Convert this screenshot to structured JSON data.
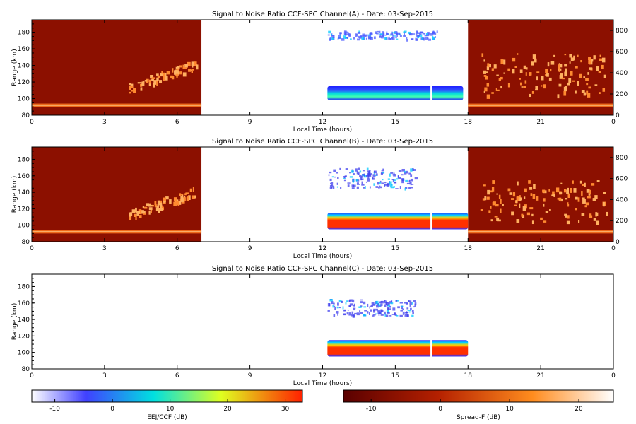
{
  "chart_data": [
    {
      "type": "heatmap",
      "title": "Signal to Noise Ratio CCF-SPC Channel(A) - Date: 03-Sep-2015",
      "xlabel": "Local Time (hours)",
      "ylabel": "Range (km)",
      "xlim": [
        0,
        24
      ],
      "xticks": [
        "0",
        "3",
        "6",
        "9",
        "12",
        "15",
        "18",
        "21",
        "0"
      ],
      "ylim": [
        80,
        195
      ],
      "yticks": [
        "80",
        "100",
        "120",
        "140",
        "160",
        "180"
      ],
      "y2lim": [
        0,
        900
      ],
      "y2ticks": [
        "0",
        "200",
        "400",
        "600",
        "800"
      ],
      "regions": [
        {
          "name": "night-spread-F",
          "x": [
            0,
            7
          ],
          "scale": "Spread-F"
        },
        {
          "name": "day-EEJ-CCF",
          "x": [
            12,
            18
          ],
          "scale": "EEJ/CCF"
        },
        {
          "name": "night-spread-F",
          "x": [
            18,
            24
          ],
          "scale": "Spread-F"
        }
      ],
      "echoes": [
        {
          "feature": "EEJ band",
          "x": [
            12.2,
            17.8
          ],
          "range_km": [
            98,
            115
          ],
          "snr_db": 15
        },
        {
          "feature": "150 km echoes",
          "x": [
            12.2,
            16.7
          ],
          "range_km": [
            172,
            182
          ],
          "snr_db": -5
        }
      ]
    },
    {
      "type": "heatmap",
      "title": "Signal to Noise Ratio CCF-SPC Channel(B) - Date: 03-Sep-2015",
      "xlabel": "Local Time (hours)",
      "ylabel": "Range (km)",
      "xlim": [
        0,
        24
      ],
      "xticks": [
        "0",
        "3",
        "6",
        "9",
        "12",
        "15",
        "18",
        "21",
        "0"
      ],
      "ylim": [
        80,
        195
      ],
      "yticks": [
        "80",
        "100",
        "120",
        "140",
        "160",
        "180"
      ],
      "y2lim": [
        0,
        900
      ],
      "y2ticks": [
        "0",
        "200",
        "400",
        "600",
        "800"
      ],
      "regions": [
        {
          "name": "night-spread-F",
          "x": [
            0,
            7
          ],
          "scale": "Spread-F"
        },
        {
          "name": "day-EEJ-CCF",
          "x": [
            12,
            18
          ],
          "scale": "EEJ/CCF"
        },
        {
          "name": "night-spread-F",
          "x": [
            18,
            24
          ],
          "scale": "Spread-F"
        }
      ],
      "echoes": [
        {
          "feature": "EEJ band",
          "x": [
            12.2,
            18
          ],
          "range_km": [
            95,
            115
          ],
          "snr_db": 30
        },
        {
          "feature": "150 km echoes",
          "x": [
            12.2,
            15.8
          ],
          "range_km": [
            145,
            170
          ],
          "snr_db": -5
        }
      ]
    },
    {
      "type": "heatmap",
      "title": "Signal to Noise Ratio CCF-SPC Channel(C) - Date: 03-Sep-2015",
      "xlabel": "Local Time (hours)",
      "ylabel": "Range (km)",
      "xlim": [
        0,
        24
      ],
      "xticks": [
        "0",
        "3",
        "6",
        "9",
        "12",
        "15",
        "18",
        "21",
        "0"
      ],
      "ylim": [
        80,
        195
      ],
      "yticks": [
        "80",
        "100",
        "120",
        "140",
        "160",
        "180"
      ],
      "echoes": [
        {
          "feature": "EEJ band",
          "x": [
            12.2,
            18
          ],
          "range_km": [
            95,
            115
          ],
          "snr_db": 30
        },
        {
          "feature": "150 km echoes",
          "x": [
            12.2,
            15.8
          ],
          "range_km": [
            145,
            165
          ],
          "snr_db": -5
        }
      ]
    }
  ],
  "colorbars": [
    {
      "label": "EEJ/CCF (dB)",
      "ticks": [
        "-10",
        "0",
        "10",
        "20",
        "30"
      ],
      "min": -14,
      "max": 33,
      "colors": [
        "#ffffff",
        "#4040ff",
        "#00e0e0",
        "#e0ff20",
        "#ff2000"
      ]
    },
    {
      "label": "Spread-F (dB)",
      "ticks": [
        "-10",
        "0",
        "10",
        "20"
      ],
      "min": -14,
      "max": 25,
      "colors": [
        "#5a0000",
        "#b42000",
        "#ff8c1e",
        "#ffffff"
      ]
    }
  ]
}
